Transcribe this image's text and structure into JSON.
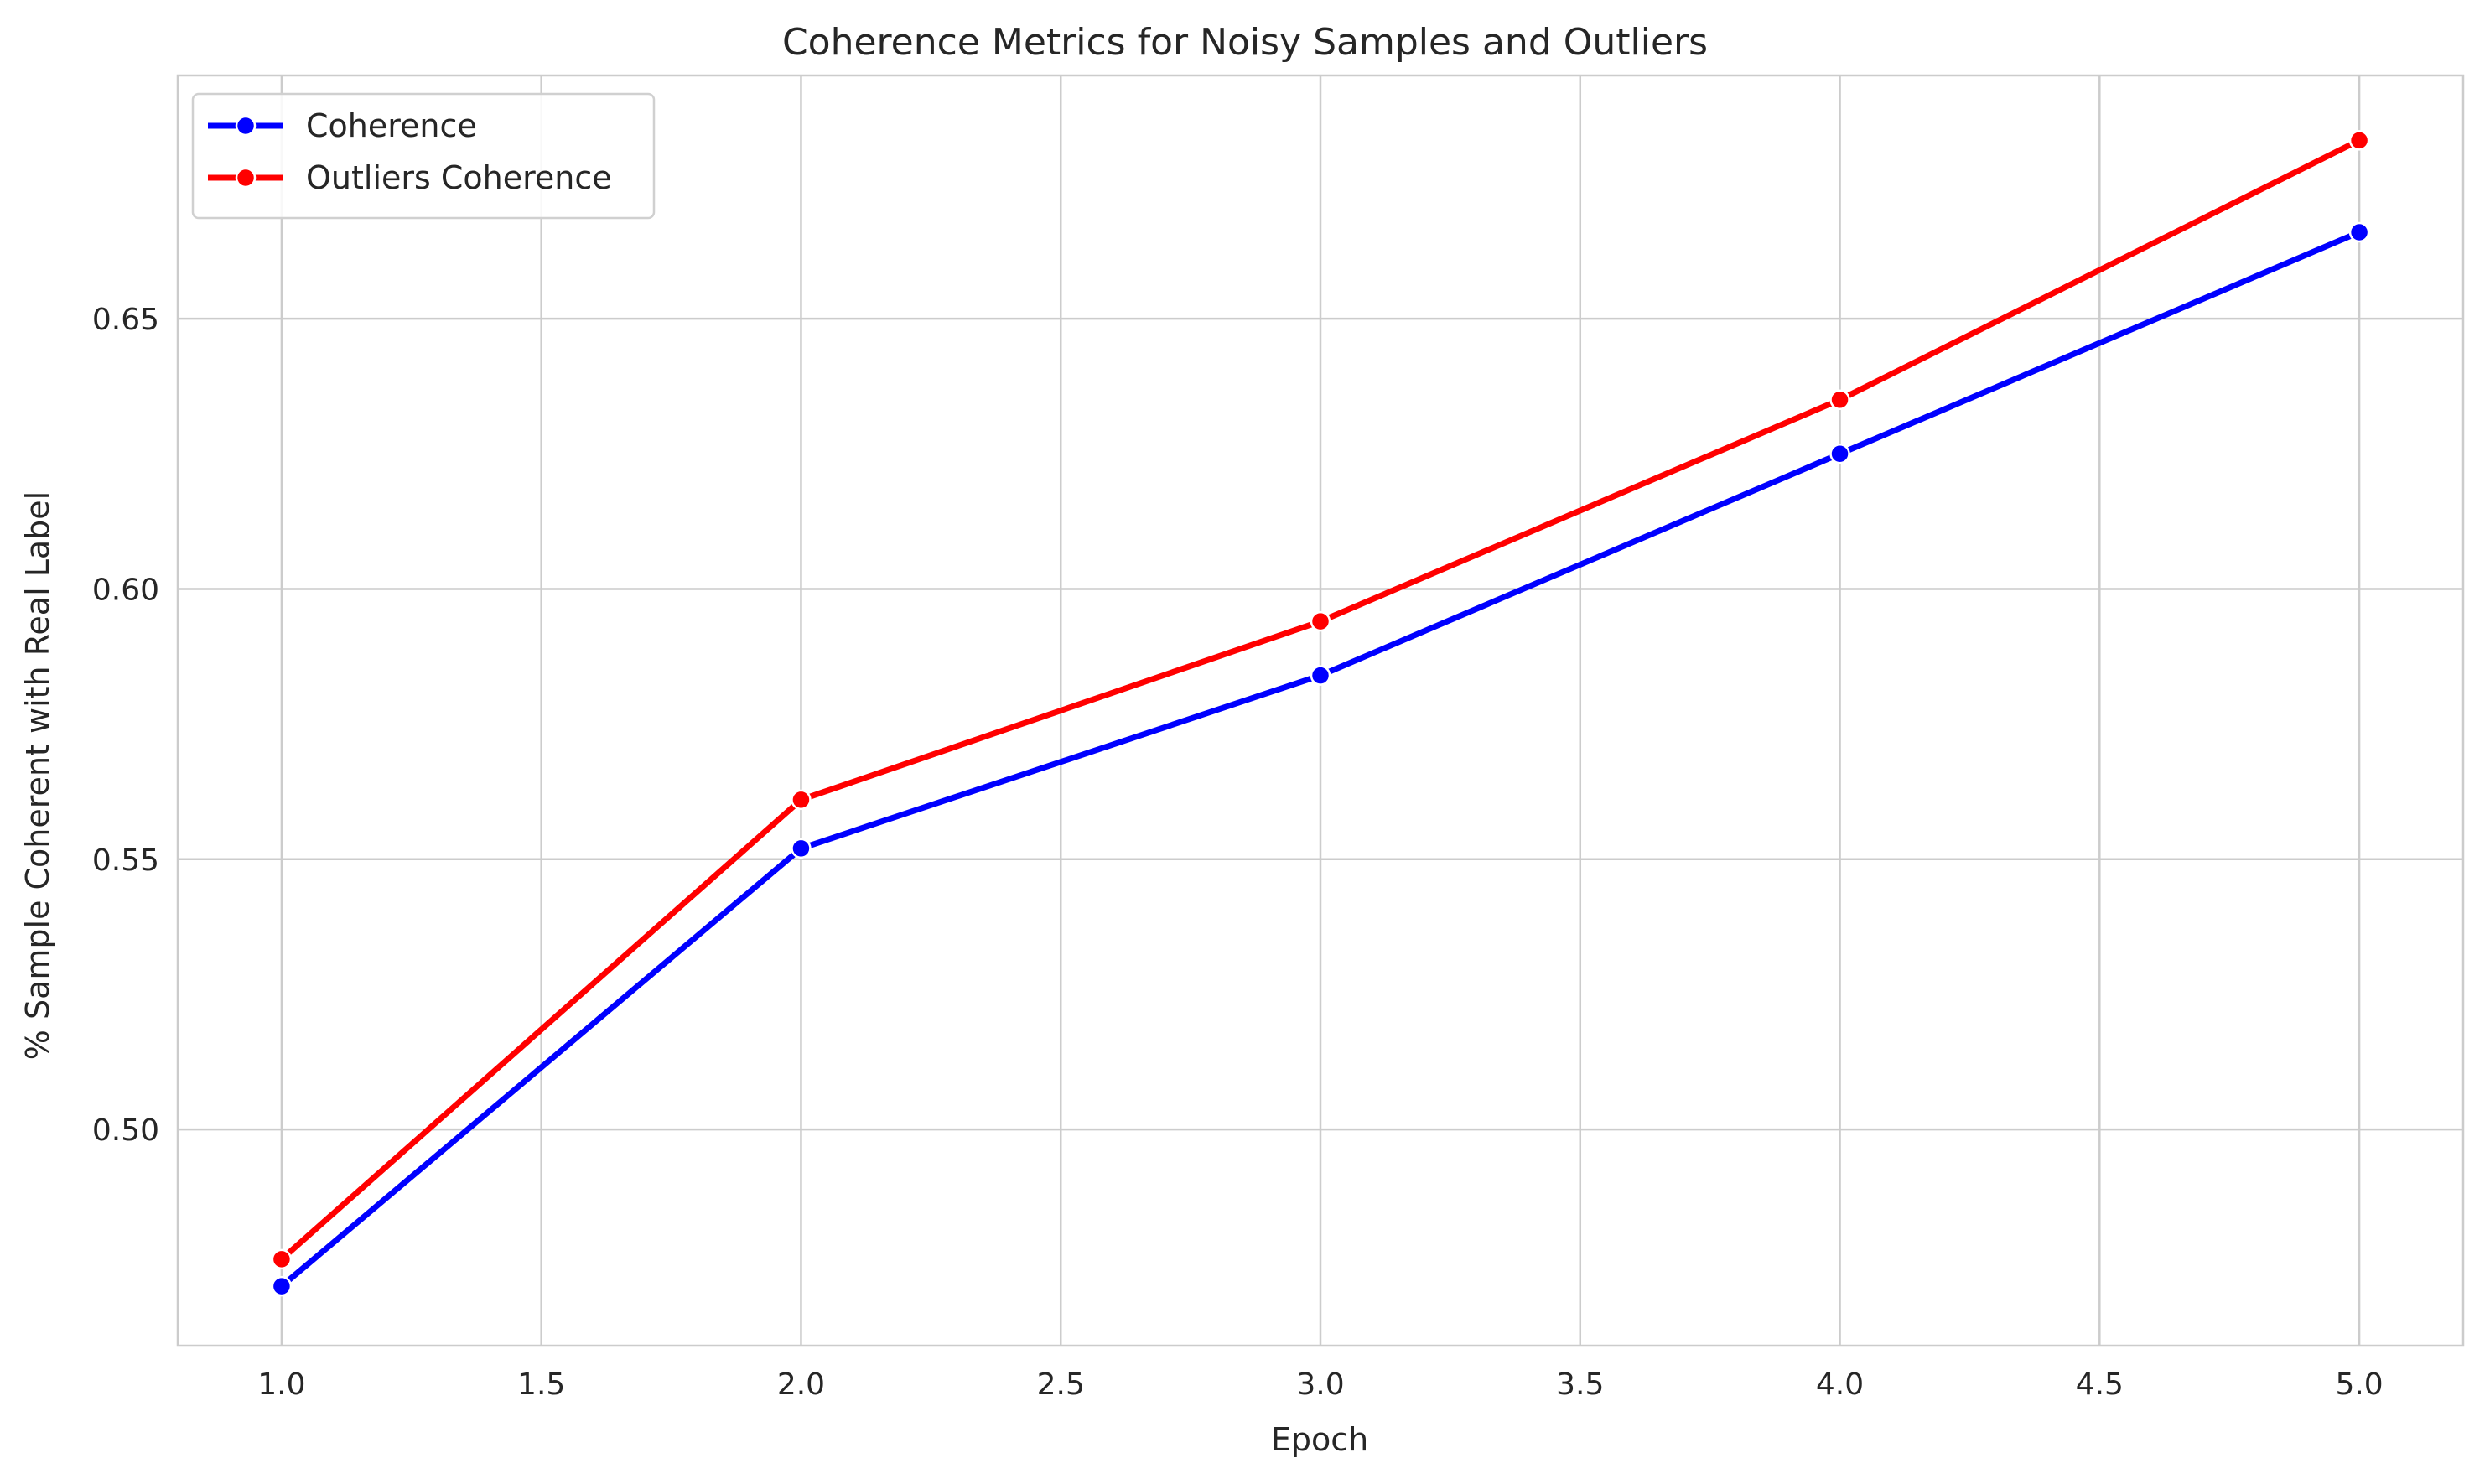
{
  "chart_data": {
    "type": "line",
    "title": "Coherence Metrics for Noisy Samples and Outliers",
    "xlabel": "Epoch",
    "ylabel": "% Sample Coherent with Real Label",
    "x": [
      1.0,
      2.0,
      3.0,
      4.0,
      5.0
    ],
    "xlim": [
      0.8,
      5.2
    ],
    "ylim": [
      0.46,
      0.695
    ],
    "xticks": [
      1.0,
      1.5,
      2.0,
      2.5,
      3.0,
      3.5,
      4.0,
      4.5,
      5.0
    ],
    "xtick_labels": [
      "1.0",
      "1.5",
      "2.0",
      "2.5",
      "3.0",
      "3.5",
      "4.0",
      "4.5",
      "5.0"
    ],
    "yticks": [
      0.5,
      0.55,
      0.6,
      0.65
    ],
    "ytick_labels": [
      "0.50",
      "0.55",
      "0.60",
      "0.65"
    ],
    "grid": true,
    "legend_position": "top-left",
    "series": [
      {
        "name": "Coherence",
        "color": "#0000ff",
        "values": [
          0.471,
          0.552,
          0.584,
          0.625,
          0.666
        ]
      },
      {
        "name": "Outliers Coherence",
        "color": "#ff0000",
        "values": [
          0.476,
          0.561,
          0.594,
          0.635,
          0.683
        ]
      }
    ]
  }
}
